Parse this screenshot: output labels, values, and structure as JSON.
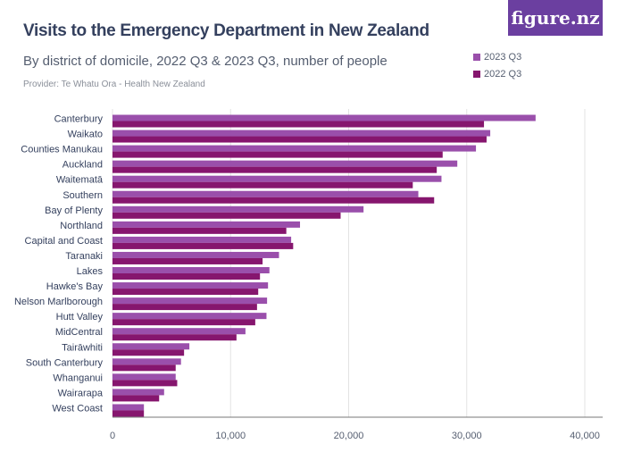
{
  "header": {
    "title": "Visits to the Emergency Department in New Zealand",
    "subtitle": "By district of domicile, 2022 Q3 & 2023 Q3, number of people",
    "provider": "Provider: Te Whatu Ora - Health New Zealand",
    "logo": "figure.nz"
  },
  "chart_data": {
    "type": "bar",
    "orientation": "horizontal",
    "grid": true,
    "legend": "top-right",
    "categories": [
      "Canterbury",
      "Waikato",
      "Counties Manukau",
      "Auckland",
      "Waitematā",
      "Southern",
      "Bay of Plenty",
      "Northland",
      "Capital and Coast",
      "Taranaki",
      "Lakes",
      "Hawke's Bay",
      "Nelson Marlborough",
      "Hutt Valley",
      "MidCentral",
      "Tairāwhiti",
      "South Canterbury",
      "Whanganui",
      "Wairarapa",
      "West Coast"
    ],
    "series": [
      {
        "name": "2023 Q3",
        "color": "#9a4fab",
        "values": [
          35830,
          31990,
          30780,
          29200,
          27860,
          25900,
          21260,
          15880,
          15130,
          14100,
          13290,
          13170,
          13090,
          13040,
          11260,
          6510,
          5800,
          5350,
          4370,
          2660
        ]
      },
      {
        "name": "2022 Q3",
        "color": "#86166e",
        "values": [
          31460,
          31680,
          27960,
          27460,
          25430,
          27240,
          19320,
          14720,
          15300,
          12710,
          12490,
          12340,
          12240,
          12090,
          10500,
          6060,
          5350,
          5480,
          3950,
          2660
        ]
      }
    ],
    "xlim": [
      0,
      40000
    ],
    "xticks": [
      "0",
      "10,000",
      "20,000",
      "30,000",
      "40,000"
    ],
    "xtick_values": [
      0,
      10000,
      20000,
      30000,
      40000
    ]
  }
}
